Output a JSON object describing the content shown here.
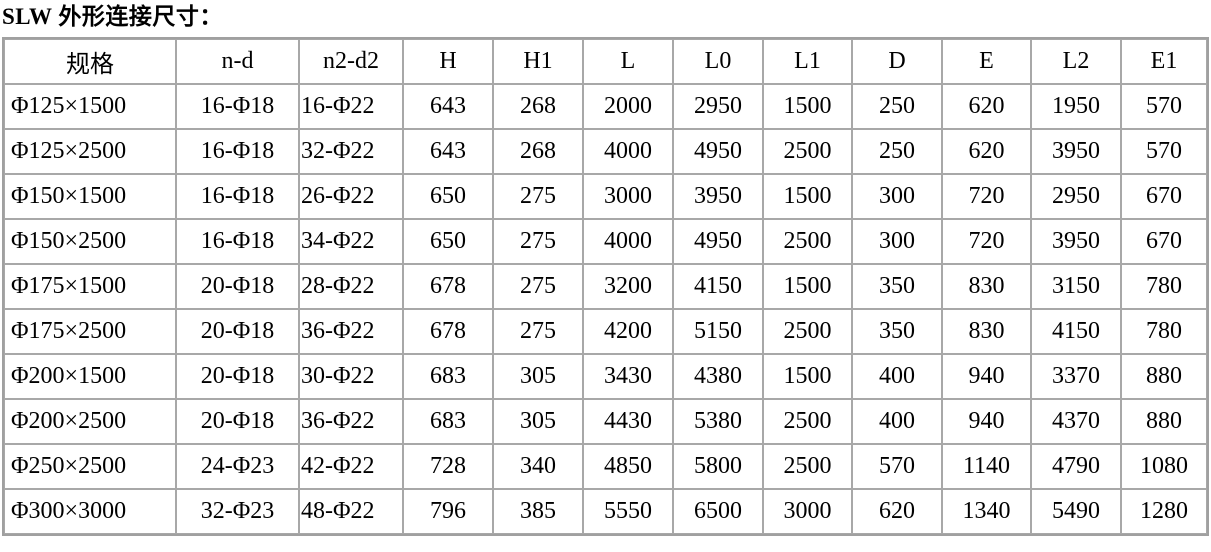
{
  "title": "SLW 外形连接尺寸：",
  "table": {
    "headers": [
      "规格",
      "n-d",
      "n2-d2",
      "H",
      "H1",
      "L",
      "L0",
      "L1",
      "D",
      "E",
      "L2",
      "E1"
    ],
    "rows": [
      [
        "Φ125×1500",
        "16-Φ18",
        "16-Φ22",
        "643",
        "268",
        "2000",
        "2950",
        "1500",
        "250",
        "620",
        "1950",
        "570"
      ],
      [
        "Φ125×2500",
        "16-Φ18",
        "32-Φ22",
        "643",
        "268",
        "4000",
        "4950",
        "2500",
        "250",
        "620",
        "3950",
        "570"
      ],
      [
        "Φ150×1500",
        "16-Φ18",
        "26-Φ22",
        "650",
        "275",
        "3000",
        "3950",
        "1500",
        "300",
        "720",
        "2950",
        "670"
      ],
      [
        "Φ150×2500",
        "16-Φ18",
        "34-Φ22",
        "650",
        "275",
        "4000",
        "4950",
        "2500",
        "300",
        "720",
        "3950",
        "670"
      ],
      [
        "Φ175×1500",
        "20-Φ18",
        "28-Φ22",
        "678",
        "275",
        "3200",
        "4150",
        "1500",
        "350",
        "830",
        "3150",
        "780"
      ],
      [
        "Φ175×2500",
        "20-Φ18",
        "36-Φ22",
        "678",
        "275",
        "4200",
        "5150",
        "2500",
        "350",
        "830",
        "4150",
        "780"
      ],
      [
        "Φ200×1500",
        "20-Φ18",
        "30-Φ22",
        "683",
        "305",
        "3430",
        "4380",
        "1500",
        "400",
        "940",
        "3370",
        "880"
      ],
      [
        "Φ200×2500",
        "20-Φ18",
        "36-Φ22",
        "683",
        "305",
        "4430",
        "5380",
        "2500",
        "400",
        "940",
        "4370",
        "880"
      ],
      [
        "Φ250×2500",
        "24-Φ23",
        "42-Φ22",
        "728",
        "340",
        "4850",
        "5800",
        "2500",
        "570",
        "1140",
        "4790",
        "1080"
      ],
      [
        "Φ300×3000",
        "32-Φ23",
        "48-Φ22",
        "796",
        "385",
        "5550",
        "6500",
        "3000",
        "620",
        "1340",
        "5490",
        "1280"
      ]
    ]
  }
}
